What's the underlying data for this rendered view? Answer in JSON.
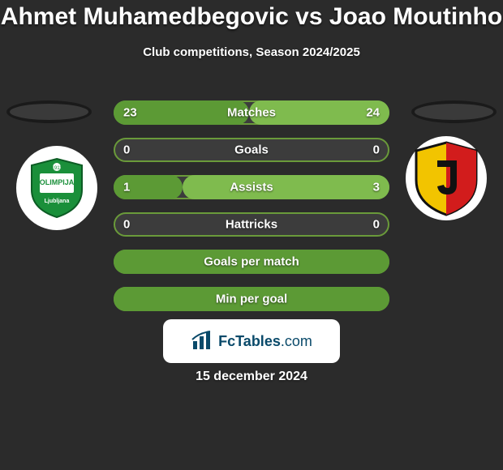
{
  "colors": {
    "page_bg": "#2b2b2b",
    "text": "#ffffff",
    "bar_bg": "#3c3c3c",
    "bar_border": "#6a9a3a",
    "fill_left": "#5c9a35",
    "fill_right": "#7fbb4e",
    "brand_bg": "#ffffff",
    "brand_text": "#0a4a6a",
    "logo_bg": "#ffffff",
    "player_placeholder_bg": "#3a3a3a",
    "shield_green": "#1a8f3a",
    "shield_yellow": "#f2c400",
    "shield_red": "#d21c1c",
    "shield_black": "#111111"
  },
  "title": "Ahmet Muhamedbegovic vs Joao Moutinho",
  "subtitle": "Club competitions, Season 2024/2025",
  "bars": [
    {
      "label": "Matches",
      "left": "23",
      "right": "24",
      "left_pct": 49,
      "right_pct": 51
    },
    {
      "label": "Goals",
      "left": "0",
      "right": "0",
      "left_pct": 0,
      "right_pct": 0
    },
    {
      "label": "Assists",
      "left": "1",
      "right": "3",
      "left_pct": 25,
      "right_pct": 75
    },
    {
      "label": "Hattricks",
      "left": "0",
      "right": "0",
      "left_pct": 0,
      "right_pct": 0
    },
    {
      "label": "Goals per match",
      "left": "",
      "right": "",
      "left_pct": 100,
      "right_pct": 0
    },
    {
      "label": "Min per goal",
      "left": "",
      "right": "",
      "left_pct": 100,
      "right_pct": 0
    }
  ],
  "brand": {
    "name": "FcTables",
    "suffix": ".com"
  },
  "date": "15 december 2024",
  "logos": {
    "left_alt": "Olimpija Ljubljana crest",
    "right_alt": "Jagiellonia Bialystok crest"
  }
}
